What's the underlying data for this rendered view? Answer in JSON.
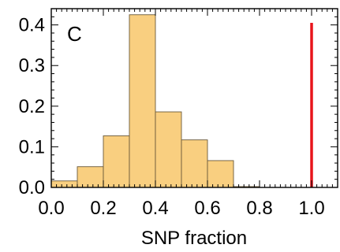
{
  "chart_data": {
    "type": "bar",
    "panel_label": "C",
    "xlabel": "SNP fraction",
    "ylabel": "",
    "xlim": [
      0.0,
      1.1
    ],
    "ylim": [
      0.0,
      0.44
    ],
    "x_ticks": [
      {
        "value": 0.0,
        "label": "0.0"
      },
      {
        "value": 0.2,
        "label": "0.2"
      },
      {
        "value": 0.4,
        "label": "0.4"
      },
      {
        "value": 0.6,
        "label": "0.6"
      },
      {
        "value": 0.8,
        "label": "0.8"
      },
      {
        "value": 1.0,
        "label": "1.0"
      }
    ],
    "y_ticks": [
      {
        "value": 0.0,
        "label": "0.0"
      },
      {
        "value": 0.1,
        "label": "0.1"
      },
      {
        "value": 0.2,
        "label": "0.2"
      },
      {
        "value": 0.3,
        "label": "0.3"
      },
      {
        "value": 0.4,
        "label": "0.4"
      }
    ],
    "bins": [
      {
        "x0": 0.0,
        "x1": 0.1,
        "value": 0.016
      },
      {
        "x0": 0.1,
        "x1": 0.2,
        "value": 0.051
      },
      {
        "x0": 0.2,
        "x1": 0.3,
        "value": 0.127
      },
      {
        "x0": 0.3,
        "x1": 0.4,
        "value": 0.425
      },
      {
        "x0": 0.4,
        "x1": 0.5,
        "value": 0.186
      },
      {
        "x0": 0.5,
        "x1": 0.6,
        "value": 0.117
      },
      {
        "x0": 0.6,
        "x1": 0.7,
        "value": 0.066
      },
      {
        "x0": 0.7,
        "x1": 0.8,
        "value": 0.002
      }
    ],
    "marker_line": {
      "x": 1.0,
      "y_top": 0.405,
      "color": "#e8141b"
    },
    "bar_fill": "#f9cf80",
    "bar_stroke": "#6b5a3a",
    "grid": false
  }
}
